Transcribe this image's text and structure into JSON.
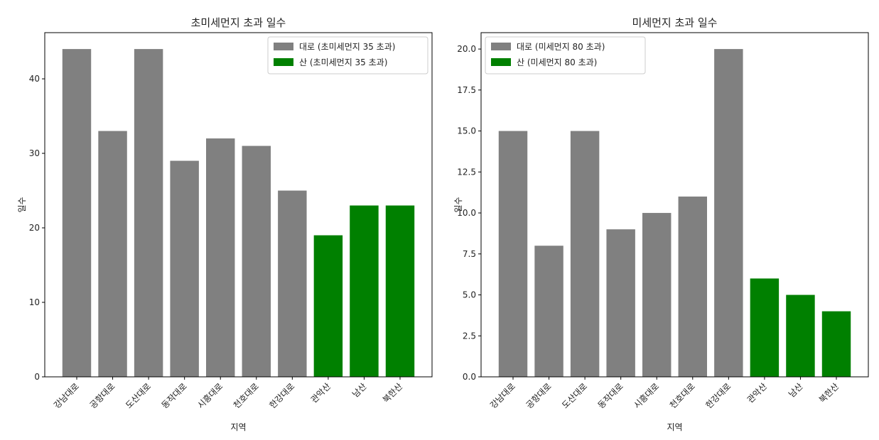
{
  "chart_data": [
    {
      "type": "bar",
      "title": "초미세먼지 초과 일수",
      "x_label": "지역",
      "y_label": "일수",
      "categories": [
        "강남대로",
        "공항대로",
        "도산대로",
        "동작대로",
        "시흥대로",
        "천호대로",
        "한강대로",
        "관악산",
        "남산",
        "북한산"
      ],
      "series": [
        {
          "name": "대로 (초미세먼지 35 초과)",
          "color": "#808080",
          "values": [
            44,
            33,
            44,
            29,
            32,
            31,
            25,
            null,
            null,
            null
          ]
        },
        {
          "name": "산 (초미세먼지 35 초과)",
          "color": "#008000",
          "values": [
            null,
            null,
            null,
            null,
            null,
            null,
            null,
            19,
            23,
            23
          ]
        }
      ],
      "ylim": [
        0,
        46.2
      ],
      "yticks": [
        0,
        10,
        20,
        30,
        40
      ],
      "legend": "upper right"
    },
    {
      "type": "bar",
      "title": "미세먼지 초과 일수",
      "x_label": "지역",
      "y_label": "일수",
      "categories": [
        "강남대로",
        "공항대로",
        "도산대로",
        "동작대로",
        "시흥대로",
        "천호대로",
        "한강대로",
        "관악산",
        "남산",
        "북한산"
      ],
      "series": [
        {
          "name": "대로 (미세먼지 80 초과)",
          "color": "#808080",
          "values": [
            15,
            8,
            15,
            9,
            10,
            11,
            20,
            null,
            null,
            null
          ]
        },
        {
          "name": "산 (미세먼지 80 초과)",
          "color": "#008000",
          "values": [
            null,
            null,
            null,
            null,
            null,
            null,
            null,
            6,
            5,
            4
          ]
        }
      ],
      "ylim": [
        0,
        21
      ],
      "yticks": [
        {
          "value": 0,
          "label": "0.0"
        },
        {
          "value": 2.5,
          "label": "2.5"
        },
        {
          "value": 5,
          "label": "5.0"
        },
        {
          "value": 7.5,
          "label": "7.5"
        },
        {
          "value": 10,
          "label": "10.0"
        },
        {
          "value": 12.5,
          "label": "12.5"
        },
        {
          "value": 15,
          "label": "15.0"
        },
        {
          "value": 17.5,
          "label": "17.5"
        },
        {
          "value": 20,
          "label": "20.0"
        }
      ],
      "legend": "upper left"
    }
  ]
}
